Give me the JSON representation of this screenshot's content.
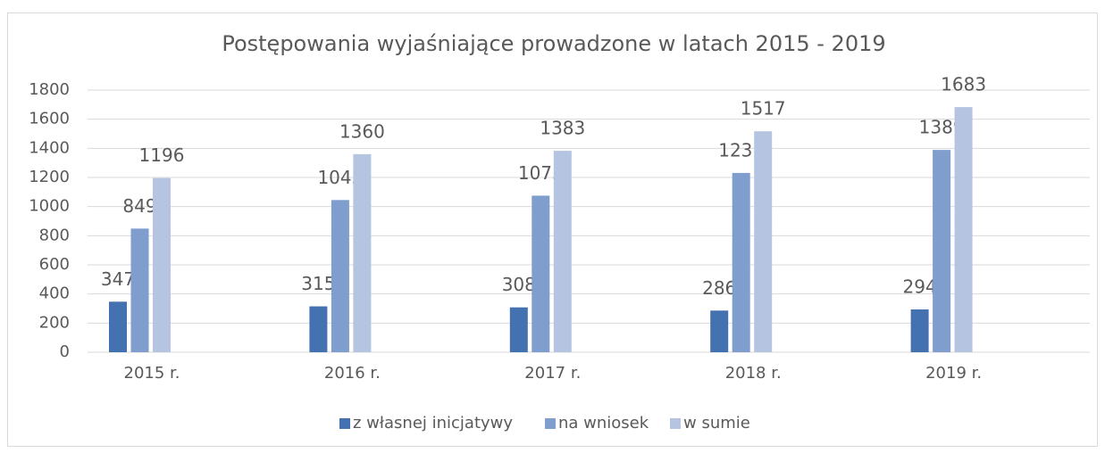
{
  "chart_data": {
    "type": "bar",
    "title": "Postępowania wyjaśniające prowadzone w latach 2015 - 2019",
    "categories": [
      "2015 r.",
      "2016 r.",
      "2017 r.",
      "2018 r.",
      "2019 r."
    ],
    "series": [
      {
        "name": "z własnej inicjatywy",
        "color": "#4472b0",
        "values": [
          347,
          315,
          308,
          286,
          294
        ]
      },
      {
        "name": "na wniosek",
        "color": "#7f9dcd",
        "values": [
          849,
          1045,
          1075,
          1231,
          1389
        ]
      },
      {
        "name": "w sumie",
        "color": "#b4c4e1",
        "values": [
          1196,
          1360,
          1383,
          1517,
          1683
        ]
      }
    ],
    "ylim": [
      0,
      1800
    ],
    "yticks": [
      0,
      200,
      400,
      600,
      800,
      1000,
      1200,
      1400,
      1600,
      1800
    ],
    "grid": true,
    "legend": "bottom"
  }
}
